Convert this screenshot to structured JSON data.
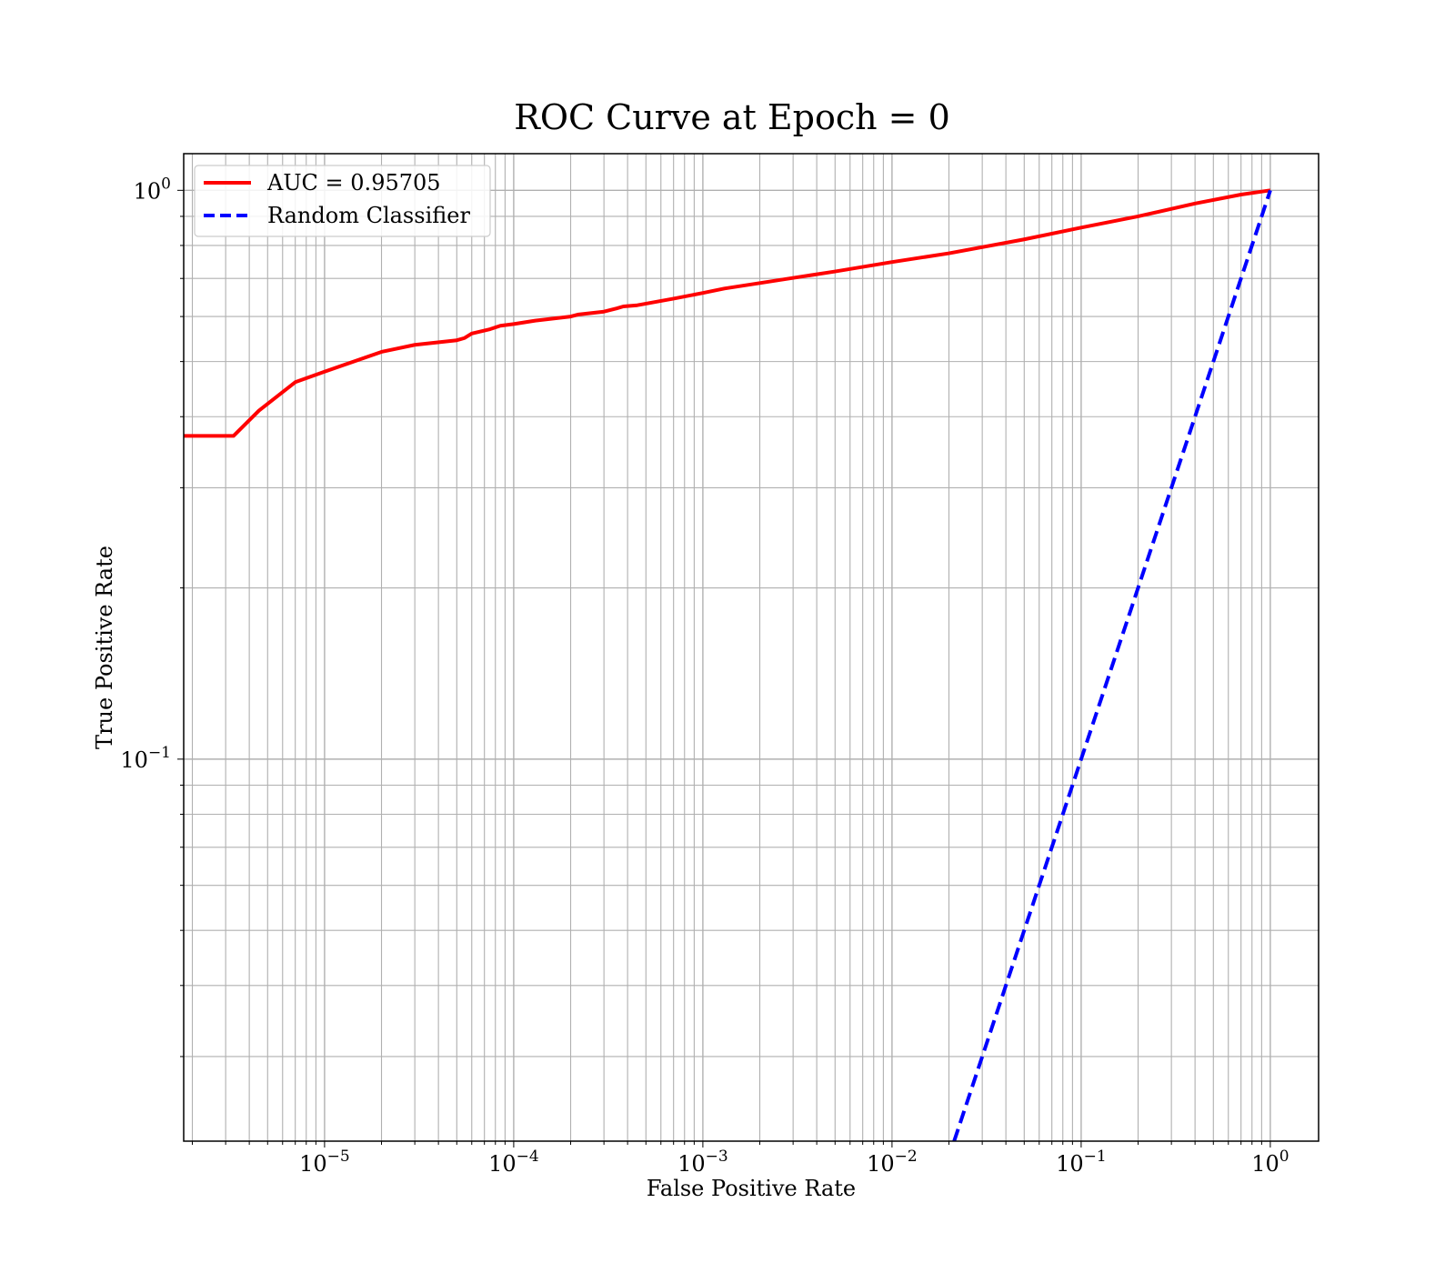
{
  "chart_data": {
    "type": "line",
    "title": "ROC Curve at Epoch = 0",
    "xlabel": "False Positive Rate",
    "ylabel": "True Positive Rate",
    "xscale": "log",
    "yscale": "log",
    "xlim": [
      1.8e-06,
      1.8
    ],
    "ylim": [
      0.0213,
      1.16
    ],
    "grid": true,
    "grid_minor": true,
    "legend_placement": "top-left",
    "x_ticks": [
      {
        "value": 1e-05,
        "base": "10",
        "exp": "−5"
      },
      {
        "value": 0.0001,
        "base": "10",
        "exp": "−4"
      },
      {
        "value": 0.001,
        "base": "10",
        "exp": "−3"
      },
      {
        "value": 0.01,
        "base": "10",
        "exp": "−2"
      },
      {
        "value": 0.1,
        "base": "10",
        "exp": "−1"
      },
      {
        "value": 1,
        "base": "10",
        "exp": "0"
      }
    ],
    "y_ticks": [
      {
        "value": 0.1,
        "base": "10",
        "exp": "−1"
      },
      {
        "value": 1,
        "base": "10",
        "exp": "0"
      }
    ],
    "series": [
      {
        "name": "AUC = 0.95705",
        "color": "#ff0000",
        "dash": "solid",
        "x": [
          1.8e-06,
          3.3e-06,
          4.5e-06,
          7e-06,
          1e-05,
          2e-05,
          3e-05,
          5e-05,
          5.5e-05,
          6e-05,
          7.5e-05,
          8.5e-05,
          0.0001,
          0.00013,
          0.0002,
          0.00022,
          0.0003,
          0.00035,
          0.00038,
          0.00045,
          0.0007,
          0.001,
          0.0013,
          0.002,
          0.0025,
          0.005,
          0.01,
          0.02,
          0.05,
          0.1,
          0.2,
          0.4,
          0.7,
          1.0
        ],
        "y": [
          0.37,
          0.37,
          0.41,
          0.46,
          0.48,
          0.52,
          0.535,
          0.545,
          0.55,
          0.56,
          0.57,
          0.578,
          0.582,
          0.59,
          0.6,
          0.605,
          0.612,
          0.62,
          0.625,
          0.628,
          0.645,
          0.66,
          0.672,
          0.687,
          0.695,
          0.72,
          0.748,
          0.775,
          0.82,
          0.86,
          0.9,
          0.948,
          0.983,
          1.0
        ]
      },
      {
        "name": "Random Classifier",
        "color": "#0000ff",
        "dash": "dashed",
        "x": [
          0.0213,
          1.0
        ],
        "y": [
          0.0213,
          1.0
        ]
      }
    ]
  }
}
